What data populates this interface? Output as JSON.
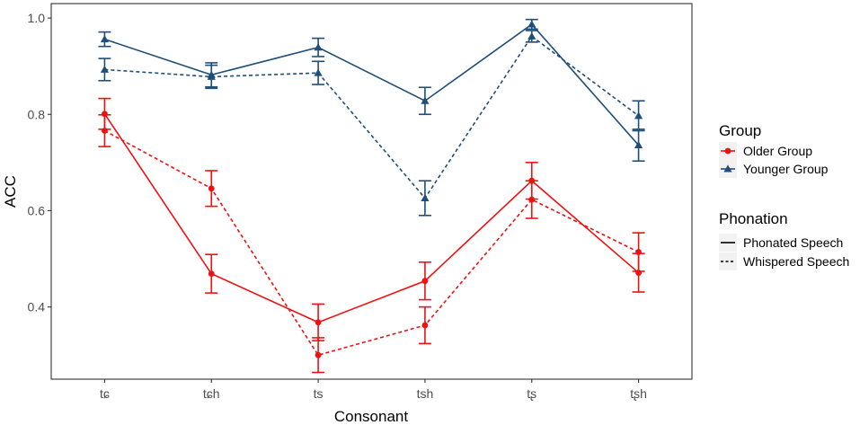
{
  "chart_data": {
    "type": "line",
    "xlabel": "Consonant",
    "ylabel": "ACC",
    "categories": [
      "tɕ",
      "tɕh",
      "ts",
      "tsh",
      "tʂ",
      "tʂh"
    ],
    "ylim": [
      0.25,
      1.03
    ],
    "yticks": [
      0.4,
      0.6,
      0.8,
      1.0
    ],
    "ytick_labels": [
      "0.4",
      "0.6",
      "0.8",
      "1.0"
    ],
    "grid": false,
    "legend_groups": [
      {
        "title": "Group",
        "entries": [
          {
            "label": "Older Group",
            "color": "#ee1111",
            "marker": "circle"
          },
          {
            "label": "Younger Group",
            "color": "#1f4e79",
            "marker": "triangle"
          }
        ]
      },
      {
        "title": "Phonation",
        "entries": [
          {
            "label": "Phonated Speech",
            "dash": "solid"
          },
          {
            "label": "Whispered Speech",
            "dash": "dashed"
          }
        ]
      }
    ],
    "series": [
      {
        "name": "Older Group – Phonated Speech",
        "group": "Older Group",
        "phonation": "Phonated Speech",
        "color": "#ee1111",
        "marker": "circle",
        "dash": "solid",
        "values": [
          0.801,
          0.469,
          0.368,
          0.454,
          0.662,
          0.471
        ],
        "err": [
          0.032,
          0.04,
          0.038,
          0.039,
          0.038,
          0.04
        ]
      },
      {
        "name": "Older Group – Whispered Speech",
        "group": "Older Group",
        "phonation": "Whispered Speech",
        "color": "#ee1111",
        "marker": "circle",
        "dash": "dashed",
        "values": [
          0.766,
          0.646,
          0.3,
          0.362,
          0.623,
          0.514
        ],
        "err": [
          0.033,
          0.037,
          0.036,
          0.038,
          0.039,
          0.04
        ]
      },
      {
        "name": "Younger Group – Phonated Speech",
        "group": "Younger Group",
        "phonation": "Phonated Speech",
        "color": "#1f4e79",
        "marker": "triangle",
        "dash": "solid",
        "values": [
          0.956,
          0.882,
          0.939,
          0.828,
          0.987,
          0.736
        ],
        "err": [
          0.015,
          0.025,
          0.019,
          0.028,
          0.01,
          0.033
        ]
      },
      {
        "name": "Younger Group – Whispered Speech",
        "group": "Younger Group",
        "phonation": "Whispered Speech",
        "color": "#1f4e79",
        "marker": "triangle",
        "dash": "dashed",
        "values": [
          0.893,
          0.878,
          0.886,
          0.626,
          0.962,
          0.797
        ],
        "err": [
          0.023,
          0.024,
          0.024,
          0.036,
          0.012,
          0.031
        ]
      }
    ]
  }
}
